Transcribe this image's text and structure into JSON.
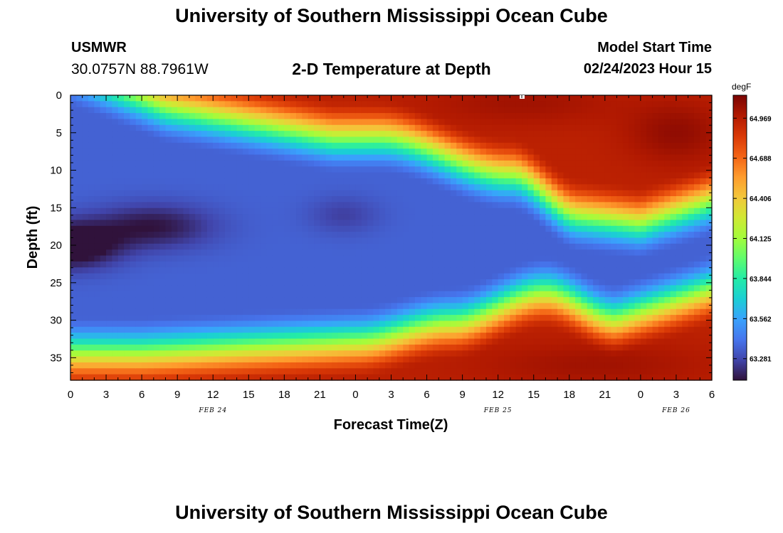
{
  "header": {
    "title": "University of Southern Mississippi Ocean Cube",
    "station": "USMWR",
    "coords": "30.0757N  88.7961W",
    "subtitle": "2-D Temperature at Depth",
    "start_label": "Model Start Time",
    "start_value": "02/24/2023 Hour 15"
  },
  "footer": {
    "title": "University of Southern Mississippi Ocean Cube"
  },
  "colors": {
    "ramp": [
      "#30123b",
      "#4145ab",
      "#4675ed",
      "#39a2fc",
      "#1bcfd4",
      "#24eca6",
      "#61fc6c",
      "#a4fc3b",
      "#d1e834",
      "#f3c63a",
      "#fe9b2d",
      "#f36315",
      "#d93806",
      "#b11901",
      "#7a0402"
    ]
  },
  "chart_data": {
    "type": "heatmap",
    "title": "2-D Temperature at Depth",
    "xlabel": "Forecast Time(Z)",
    "ylabel": "Depth (ft)",
    "colorbar_label": "degF",
    "colorbar_ticks": [
      64.969,
      64.688,
      64.406,
      64.125,
      63.844,
      63.562,
      63.281
    ],
    "value_range": [
      63.13,
      65.13
    ],
    "x_range_hours": [
      0,
      54
    ],
    "x_tick_labels": [
      "0",
      "3",
      "6",
      "9",
      "12",
      "15",
      "18",
      "21",
      "0",
      "3",
      "6",
      "9",
      "12",
      "15",
      "18",
      "21",
      "0",
      "3",
      "6"
    ],
    "date_labels": [
      {
        "text": "FEB 24",
        "hour": 12
      },
      {
        "text": "FEB 25",
        "hour": 36
      },
      {
        "text": "FEB 26",
        "hour": 51
      }
    ],
    "y_range": [
      0,
      38
    ],
    "y_tick_labels": [
      "0",
      "5",
      "10",
      "15",
      "20",
      "25",
      "30",
      "35"
    ],
    "y_inverted": true,
    "field_description_points": {
      "surface_warm_start_hours": 7,
      "cold_core_depth_ft": [
        18,
        21
      ],
      "bottom_warm_depth_ft": 36
    }
  }
}
